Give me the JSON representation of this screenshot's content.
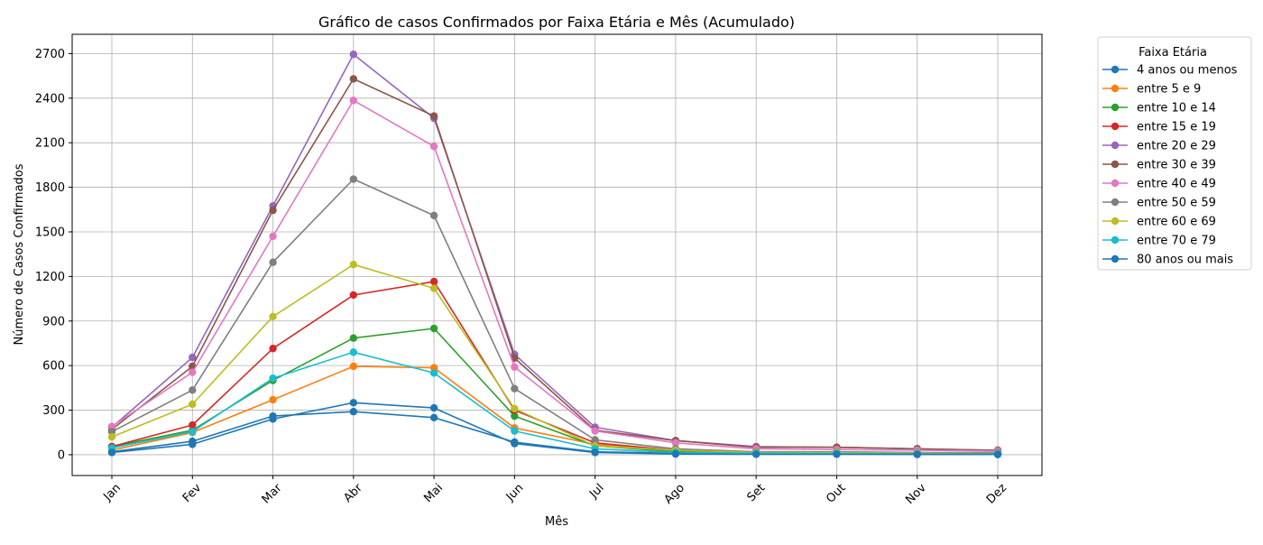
{
  "chart_data": {
    "type": "line",
    "title": "Gráfico de casos Confirmados por Faixa Etária e Mês (Acumulado)",
    "xlabel": "Mês",
    "ylabel": "Número de Casos Confirmados",
    "categories": [
      "Jan",
      "Fev",
      "Mar",
      "Abr",
      "Mai",
      "Jun",
      "Jul",
      "Ago",
      "Set",
      "Out",
      "Nov",
      "Dez"
    ],
    "yticks": [
      0,
      300,
      600,
      900,
      1200,
      1500,
      1800,
      2100,
      2400,
      2700
    ],
    "ylim": [
      -140,
      2830
    ],
    "grid": true,
    "legend": {
      "title": "Faixa Etária",
      "placement": "outside-right"
    },
    "series": [
      {
        "name": "4 anos ou menos",
        "color": "#1f77b4",
        "values": [
          20,
          90,
          260,
          290,
          250,
          85,
          20,
          10,
          5,
          5,
          3,
          2
        ]
      },
      {
        "name": "entre 5 e 9",
        "color": "#ff7f0e",
        "values": [
          30,
          150,
          370,
          595,
          585,
          180,
          70,
          25,
          15,
          15,
          8,
          5
        ]
      },
      {
        "name": "entre 10 e 14",
        "color": "#2ca02c",
        "values": [
          55,
          165,
          500,
          785,
          850,
          260,
          60,
          20,
          15,
          15,
          10,
          8
        ]
      },
      {
        "name": "entre 15 e 19",
        "color": "#d62728",
        "values": [
          55,
          200,
          715,
          1075,
          1165,
          300,
          80,
          30,
          15,
          15,
          10,
          8
        ]
      },
      {
        "name": "entre 20 e 29",
        "color": "#9467bd",
        "values": [
          185,
          655,
          1675,
          2695,
          2265,
          675,
          185,
          95,
          55,
          50,
          40,
          30
        ]
      },
      {
        "name": "entre 30 e 39",
        "color": "#8c564b",
        "values": [
          170,
          595,
          1645,
          2530,
          2280,
          650,
          165,
          95,
          50,
          50,
          40,
          30
        ]
      },
      {
        "name": "entre 40 e 49",
        "color": "#e377c2",
        "values": [
          190,
          555,
          1470,
          2385,
          2075,
          590,
          160,
          80,
          40,
          35,
          30,
          25
        ]
      },
      {
        "name": "entre 50 e 59",
        "color": "#7f7f7f",
        "values": [
          155,
          435,
          1295,
          1855,
          1610,
          445,
          100,
          40,
          20,
          20,
          15,
          15
        ]
      },
      {
        "name": "entre 60 e 69",
        "color": "#bcbd22",
        "values": [
          120,
          340,
          930,
          1280,
          1120,
          310,
          60,
          30,
          15,
          15,
          10,
          8
        ]
      },
      {
        "name": "entre 70 e 79",
        "color": "#17becf",
        "values": [
          45,
          155,
          515,
          690,
          550,
          160,
          40,
          15,
          10,
          8,
          5,
          5
        ]
      },
      {
        "name": "80 anos ou mais",
        "color": "#1f77b4",
        "values": [
          15,
          70,
          240,
          350,
          315,
          75,
          15,
          5,
          3,
          3,
          2,
          2
        ]
      }
    ]
  }
}
